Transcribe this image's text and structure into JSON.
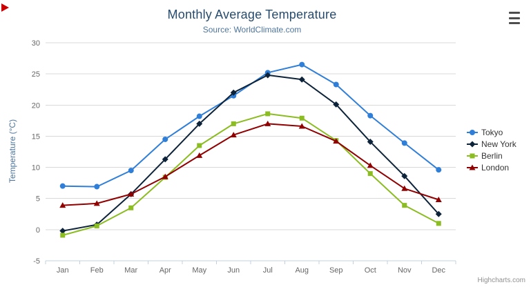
{
  "chart": {
    "credits": "Highcharts.com"
  },
  "icons": {
    "export_menu": "hamburger-menu-icon",
    "corner_marker": "red-triangle-marker"
  },
  "chart_data": {
    "type": "line",
    "title": "Monthly Average Temperature",
    "subtitle": "Source: WorldClimate.com",
    "xlabel": "",
    "ylabel": "Temperature (°C)",
    "categories": [
      "Jan",
      "Feb",
      "Mar",
      "Apr",
      "May",
      "Jun",
      "Jul",
      "Aug",
      "Sep",
      "Oct",
      "Nov",
      "Dec"
    ],
    "ylim": [
      -5,
      30
    ],
    "ytick_step": 5,
    "grid": true,
    "legend_position": "right",
    "colors": {
      "grid": "#d8d8d8",
      "axis_line": "#c0d0e0",
      "tick_label": "#666666",
      "legend_text": "#333333"
    },
    "series": [
      {
        "name": "Tokyo",
        "color": "#2f7ed8",
        "marker": "circle",
        "values": [
          7.0,
          6.9,
          9.5,
          14.5,
          18.2,
          21.5,
          25.2,
          26.5,
          23.3,
          18.3,
          13.9,
          9.6
        ]
      },
      {
        "name": "New York",
        "color": "#0d233a",
        "marker": "diamond",
        "values": [
          -0.2,
          0.8,
          5.7,
          11.3,
          17.0,
          22.0,
          24.8,
          24.1,
          20.1,
          14.1,
          8.6,
          2.5
        ]
      },
      {
        "name": "Berlin",
        "color": "#8bbc21",
        "marker": "square",
        "values": [
          -0.9,
          0.6,
          3.5,
          8.4,
          13.5,
          17.0,
          18.6,
          17.9,
          14.3,
          9.0,
          3.9,
          1.0
        ]
      },
      {
        "name": "London",
        "color": "#910000",
        "marker": "triangle",
        "values": [
          3.9,
          4.2,
          5.7,
          8.5,
          11.9,
          15.2,
          17.0,
          16.6,
          14.2,
          10.3,
          6.6,
          4.8
        ]
      }
    ]
  }
}
